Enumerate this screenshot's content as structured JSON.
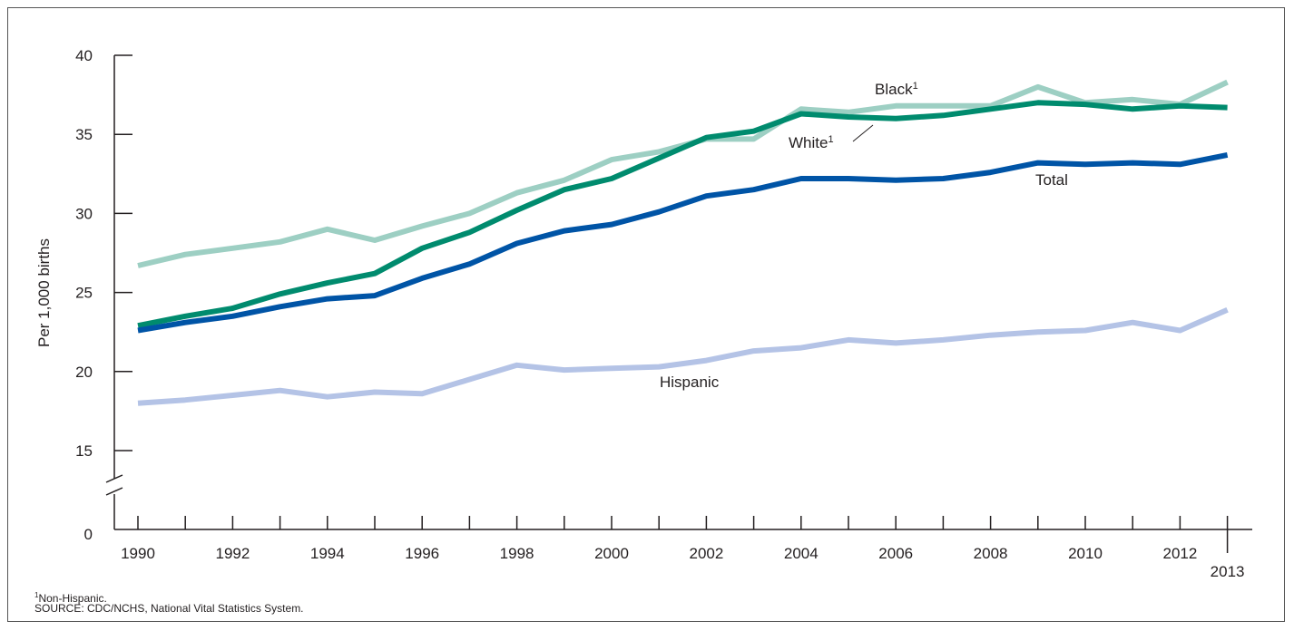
{
  "chart_data": {
    "type": "line",
    "title": "",
    "ylabel": "Per 1,000 births",
    "xlabel": "",
    "ylim": [
      15,
      40
    ],
    "y_ticks": [
      15,
      20,
      25,
      30,
      35,
      40
    ],
    "y_zero_label": "0",
    "y_axis_break": true,
    "x_tick_labels": [
      "1990",
      "1992",
      "1994",
      "1996",
      "1998",
      "2000",
      "2002",
      "2004",
      "2006",
      "2008",
      "2010",
      "2012",
      "2013"
    ],
    "x": [
      1990,
      1991,
      1992,
      1993,
      1994,
      1995,
      1996,
      1997,
      1998,
      1999,
      2000,
      2001,
      2002,
      2003,
      2004,
      2005,
      2006,
      2007,
      2008,
      2009,
      2010,
      2011,
      2012,
      2013
    ],
    "grid": false,
    "series": [
      {
        "name": "Black",
        "label_sup": "1",
        "color": "#9dcfc3",
        "values": [
          26.7,
          27.4,
          27.8,
          28.2,
          29.0,
          28.3,
          29.2,
          30.0,
          31.3,
          32.1,
          33.4,
          33.9,
          34.7,
          34.7,
          36.6,
          36.4,
          36.8,
          36.8,
          36.8,
          38.0,
          37.0,
          37.2,
          36.9,
          38.3
        ]
      },
      {
        "name": "White",
        "label_sup": "1",
        "color": "#008b6e",
        "values": [
          22.9,
          23.5,
          24.0,
          24.9,
          25.6,
          26.2,
          27.8,
          28.8,
          30.2,
          31.5,
          32.2,
          33.5,
          34.8,
          35.2,
          36.3,
          36.1,
          36.0,
          36.2,
          36.6,
          37.0,
          36.9,
          36.6,
          36.8,
          36.7
        ]
      },
      {
        "name": "Total",
        "color": "#0054a6",
        "values": [
          22.6,
          23.1,
          23.5,
          24.1,
          24.6,
          24.8,
          25.9,
          26.8,
          28.1,
          28.9,
          29.3,
          30.1,
          31.1,
          31.5,
          32.2,
          32.2,
          32.1,
          32.2,
          32.6,
          33.2,
          33.1,
          33.2,
          33.1,
          33.7
        ]
      },
      {
        "name": "Hispanic",
        "color": "#b4c3e6",
        "values": [
          18.0,
          18.2,
          18.5,
          18.8,
          18.4,
          18.7,
          18.6,
          19.5,
          20.4,
          20.1,
          20.2,
          20.3,
          20.7,
          21.3,
          21.5,
          22.0,
          21.8,
          22.0,
          22.3,
          22.5,
          22.6,
          23.1,
          22.6,
          23.9
        ]
      }
    ]
  },
  "footnote": {
    "sup": "1",
    "text": "Non-Hispanic."
  },
  "source": "SOURCE: CDC/NCHS, National Vital Statistics System."
}
